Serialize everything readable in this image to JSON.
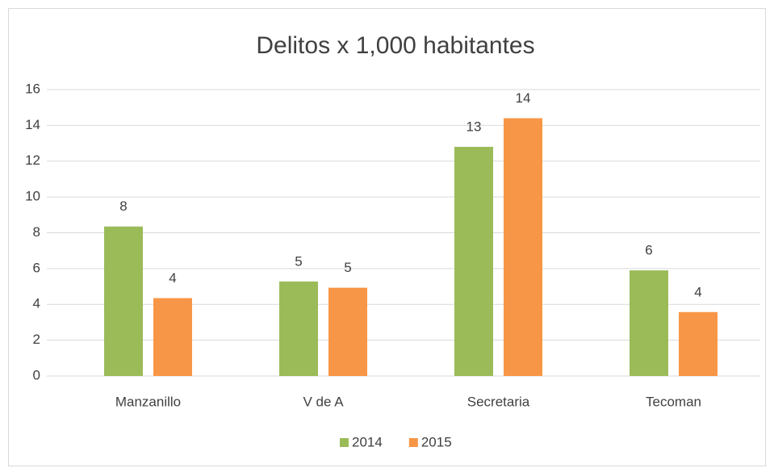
{
  "chart_data": {
    "type": "bar",
    "title": "Delitos x 1,000 habitantes",
    "categories": [
      "Manzanillo",
      "V de A",
      "Secretaria",
      "Tecoman"
    ],
    "series": [
      {
        "name": "2014",
        "color": "#9bbb59",
        "values": [
          8.35,
          5.28,
          12.8,
          5.9
        ],
        "value_labels": [
          "8",
          "5",
          "13",
          "6"
        ]
      },
      {
        "name": "2015",
        "color": "#f79646",
        "values": [
          4.35,
          4.93,
          14.4,
          3.57
        ],
        "value_labels": [
          "4",
          "5",
          "14",
          "4"
        ]
      }
    ],
    "ylim": [
      0,
      16
    ],
    "yticks": [
      0,
      2,
      4,
      6,
      8,
      10,
      12,
      14,
      16
    ],
    "grid": true,
    "legend": "bottom"
  }
}
